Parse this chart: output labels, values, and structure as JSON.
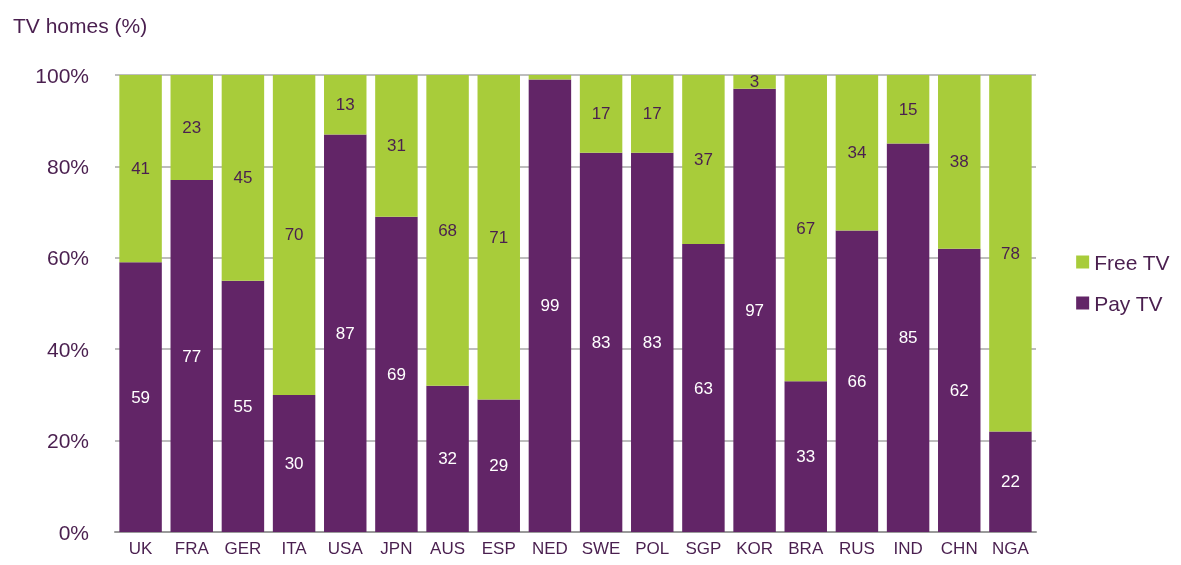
{
  "chart_data": {
    "type": "bar",
    "stacked": true,
    "ylabel": "TV homes (%)",
    "categories": [
      "UK",
      "FRA",
      "GER",
      "ITA",
      "USA",
      "JPN",
      "AUS",
      "ESP",
      "NED",
      "SWE",
      "POL",
      "SGP",
      "KOR",
      "BRA",
      "RUS",
      "IND",
      "CHN",
      "NGA"
    ],
    "series": [
      {
        "name": "Pay TV",
        "color": "#622567",
        "values": [
          59,
          77,
          55,
          30,
          87,
          69,
          32,
          29,
          99,
          83,
          83,
          63,
          97,
          33,
          66,
          85,
          62,
          22
        ],
        "value_labels": [
          "59",
          "77",
          "55",
          "30",
          "87",
          "69",
          "32",
          "29",
          "99",
          "83",
          "83",
          "63",
          "97",
          "33",
          "66",
          "85",
          "62",
          "22"
        ]
      },
      {
        "name": "Free TV",
        "color": "#a8cc3a",
        "values": [
          41,
          23,
          45,
          70,
          13,
          31,
          68,
          71,
          1,
          17,
          17,
          37,
          3,
          67,
          34,
          15,
          38,
          78
        ],
        "value_labels": [
          "41",
          "23",
          "45",
          "70",
          "13",
          "31",
          "68",
          "71",
          null,
          "17",
          "17",
          "37",
          "3",
          "67",
          "34",
          "15",
          "38",
          "78"
        ]
      }
    ],
    "ylim": [
      0,
      100
    ],
    "yticks": [
      {
        "value": 0,
        "label": "0%"
      },
      {
        "value": 20,
        "label": "20%"
      },
      {
        "value": 40,
        "label": "40%"
      },
      {
        "value": 60,
        "label": "60%"
      },
      {
        "value": 80,
        "label": "80%"
      },
      {
        "value": 100,
        "label": "100%"
      }
    ],
    "grid": "y",
    "legend": "right"
  }
}
